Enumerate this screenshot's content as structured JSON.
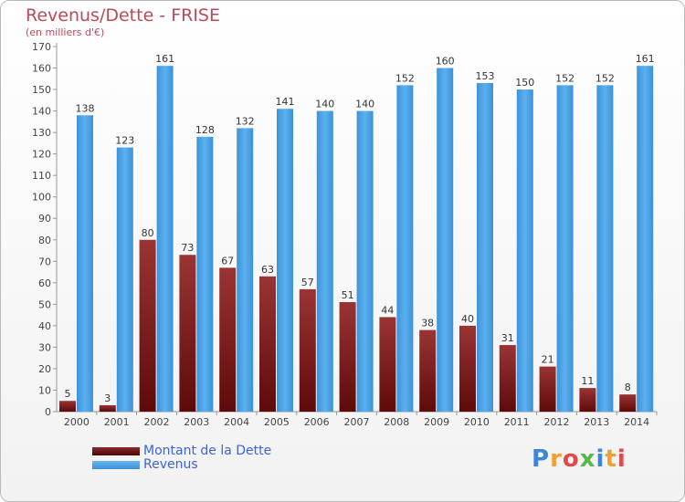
{
  "header": {
    "title": "Revenus/Dette - FRISE",
    "subtitle": "(en milliers d'€)"
  },
  "chart_data": {
    "type": "bar",
    "categories": [
      "2000",
      "2001",
      "2002",
      "2003",
      "2004",
      "2005",
      "2006",
      "2007",
      "2008",
      "2009",
      "2010",
      "2011",
      "2012",
      "2013",
      "2014"
    ],
    "series": [
      {
        "name": "Montant de la Dette",
        "color": "#7a1a1a",
        "values": [
          5,
          3,
          80,
          73,
          67,
          63,
          57,
          51,
          44,
          38,
          40,
          31,
          21,
          11,
          8
        ]
      },
      {
        "name": "Revenus",
        "color": "#4da3e6",
        "values": [
          138,
          123,
          161,
          128,
          132,
          141,
          140,
          140,
          152,
          160,
          153,
          150,
          152,
          152,
          161
        ]
      }
    ],
    "ylim": [
      0,
      170
    ],
    "ytick_step": 10,
    "grid": false,
    "legend_position": "bottom-left"
  },
  "legend": {
    "items": [
      {
        "label": "Montant de la Dette",
        "color": "#6e1212"
      },
      {
        "label": "Revenus",
        "color": "#4da3e6"
      }
    ]
  },
  "logo": {
    "letters": [
      "P",
      "r",
      "o",
      "x",
      "i",
      "t",
      "i"
    ],
    "colors": [
      "#3d86d6",
      "#f0a030",
      "#e24a4a",
      "#58b848",
      "#3d86d6",
      "#f0a030",
      "#e24a4a"
    ]
  }
}
